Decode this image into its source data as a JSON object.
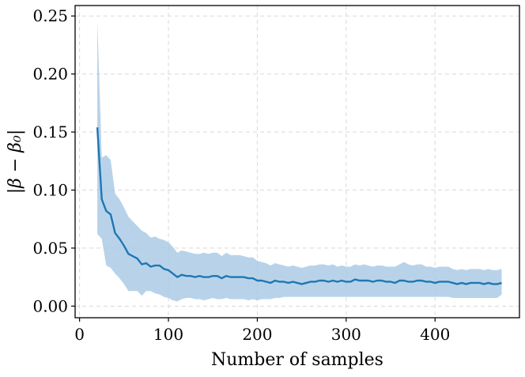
{
  "chart_data": {
    "type": "line",
    "xlabel": "Number of samples",
    "ylabel": "|β − β₀|",
    "xlim": [
      -5,
      495
    ],
    "ylim": [
      -0.01,
      0.259
    ],
    "xticks": [
      0,
      100,
      200,
      300,
      400
    ],
    "xtick_labels": [
      "0",
      "100",
      "200",
      "300",
      "400"
    ],
    "yticks": [
      0.0,
      0.05,
      0.1,
      0.15,
      0.2,
      0.25
    ],
    "ytick_labels": [
      "0.00",
      "0.05",
      "0.10",
      "0.15",
      "0.20",
      "0.25"
    ],
    "grid": true,
    "legend": "none",
    "colors": {
      "line": "#1f77b4",
      "band": "#a6c8e3",
      "grid": "#d9d9d9"
    },
    "series": [
      {
        "x": [
          20,
          25,
          30,
          35,
          40,
          45,
          50,
          55,
          60,
          65,
          70,
          75,
          80,
          85,
          90,
          95,
          100,
          105,
          110,
          115,
          120,
          125,
          130,
          135,
          140,
          145,
          150,
          155,
          160,
          165,
          170,
          175,
          180,
          185,
          190,
          195,
          200,
          205,
          210,
          215,
          220,
          225,
          230,
          235,
          240,
          245,
          250,
          255,
          260,
          265,
          270,
          275,
          280,
          285,
          290,
          295,
          300,
          305,
          310,
          315,
          320,
          325,
          330,
          335,
          340,
          345,
          350,
          355,
          360,
          365,
          370,
          375,
          380,
          385,
          390,
          395,
          400,
          405,
          410,
          415,
          420,
          425,
          430,
          435,
          440,
          445,
          450,
          455,
          460,
          465,
          470,
          475
        ],
        "y": [
          0.154,
          0.092,
          0.082,
          0.079,
          0.063,
          0.058,
          0.052,
          0.045,
          0.043,
          0.041,
          0.036,
          0.037,
          0.034,
          0.035,
          0.035,
          0.032,
          0.031,
          0.028,
          0.025,
          0.027,
          0.026,
          0.026,
          0.025,
          0.026,
          0.025,
          0.025,
          0.026,
          0.026,
          0.024,
          0.026,
          0.025,
          0.025,
          0.025,
          0.025,
          0.024,
          0.024,
          0.022,
          0.022,
          0.021,
          0.02,
          0.022,
          0.021,
          0.021,
          0.02,
          0.021,
          0.02,
          0.019,
          0.02,
          0.021,
          0.021,
          0.022,
          0.022,
          0.021,
          0.022,
          0.021,
          0.022,
          0.021,
          0.021,
          0.023,
          0.022,
          0.022,
          0.022,
          0.021,
          0.022,
          0.022,
          0.021,
          0.021,
          0.02,
          0.022,
          0.022,
          0.021,
          0.021,
          0.022,
          0.022,
          0.021,
          0.021,
          0.02,
          0.021,
          0.021,
          0.021,
          0.02,
          0.019,
          0.02,
          0.019,
          0.02,
          0.02,
          0.02,
          0.019,
          0.02,
          0.019,
          0.019,
          0.02
        ],
        "lower": [
          0.062,
          0.058,
          0.035,
          0.033,
          0.028,
          0.024,
          0.019,
          0.013,
          0.013,
          0.013,
          0.009,
          0.013,
          0.013,
          0.011,
          0.01,
          0.008,
          0.007,
          0.005,
          0.004,
          0.006,
          0.007,
          0.007,
          0.006,
          0.006,
          0.005,
          0.006,
          0.007,
          0.006,
          0.006,
          0.007,
          0.006,
          0.006,
          0.006,
          0.006,
          0.005,
          0.006,
          0.005,
          0.006,
          0.006,
          0.006,
          0.007,
          0.007,
          0.008,
          0.008,
          0.008,
          0.008,
          0.008,
          0.008,
          0.008,
          0.008,
          0.008,
          0.008,
          0.008,
          0.008,
          0.008,
          0.008,
          0.008,
          0.008,
          0.008,
          0.008,
          0.008,
          0.008,
          0.008,
          0.008,
          0.008,
          0.008,
          0.008,
          0.008,
          0.008,
          0.008,
          0.008,
          0.008,
          0.008,
          0.008,
          0.008,
          0.008,
          0.008,
          0.008,
          0.008,
          0.008,
          0.007,
          0.007,
          0.007,
          0.007,
          0.007,
          0.007,
          0.007,
          0.007,
          0.007,
          0.007,
          0.007,
          0.01
        ],
        "upper": [
          0.246,
          0.128,
          0.13,
          0.126,
          0.097,
          0.092,
          0.085,
          0.077,
          0.073,
          0.069,
          0.065,
          0.063,
          0.059,
          0.06,
          0.058,
          0.057,
          0.055,
          0.051,
          0.046,
          0.048,
          0.047,
          0.046,
          0.045,
          0.045,
          0.046,
          0.045,
          0.046,
          0.046,
          0.043,
          0.046,
          0.044,
          0.044,
          0.044,
          0.043,
          0.042,
          0.042,
          0.039,
          0.038,
          0.037,
          0.035,
          0.037,
          0.036,
          0.035,
          0.034,
          0.035,
          0.034,
          0.033,
          0.034,
          0.035,
          0.035,
          0.036,
          0.036,
          0.035,
          0.036,
          0.034,
          0.035,
          0.034,
          0.034,
          0.036,
          0.035,
          0.036,
          0.035,
          0.034,
          0.035,
          0.035,
          0.034,
          0.034,
          0.034,
          0.036,
          0.038,
          0.036,
          0.035,
          0.036,
          0.036,
          0.034,
          0.034,
          0.033,
          0.034,
          0.034,
          0.034,
          0.032,
          0.031,
          0.032,
          0.031,
          0.032,
          0.032,
          0.032,
          0.031,
          0.032,
          0.031,
          0.031,
          0.032
        ]
      }
    ]
  }
}
